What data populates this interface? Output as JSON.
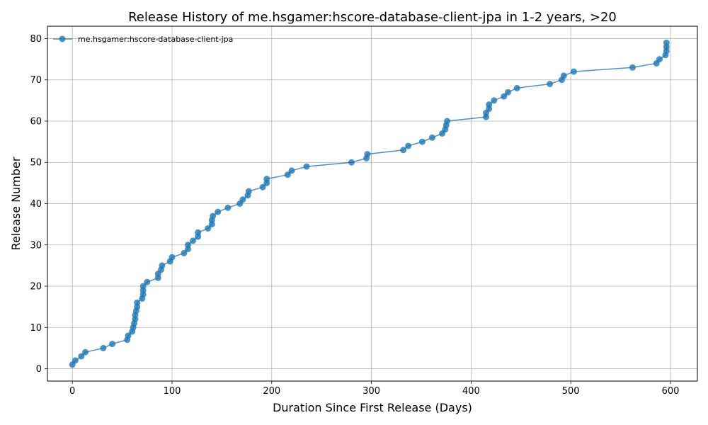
{
  "chart_data": {
    "type": "line",
    "title": "Release History of me.hsgamer:hscore-database-client-jpa in 1-2 years, >20",
    "xlabel": "Duration Since First Release (Days)",
    "ylabel": "Release Number",
    "xlim": [
      -25,
      627
    ],
    "ylim": [
      -3,
      83
    ],
    "xticks": [
      0,
      100,
      200,
      300,
      400,
      500,
      600
    ],
    "yticks": [
      0,
      10,
      20,
      30,
      40,
      50,
      60,
      70,
      80
    ],
    "grid": true,
    "legend": "top-left",
    "color": "#1f77b4",
    "series": [
      {
        "name": "me.hsgamer:hscore-database-client-jpa",
        "points": [
          [
            0,
            1
          ],
          [
            3,
            2
          ],
          [
            9,
            3
          ],
          [
            13,
            4
          ],
          [
            31,
            5
          ],
          [
            40,
            6
          ],
          [
            55,
            7
          ],
          [
            56,
            8
          ],
          [
            60,
            9
          ],
          [
            61,
            10
          ],
          [
            62,
            11
          ],
          [
            63,
            12
          ],
          [
            63,
            13
          ],
          [
            64,
            14
          ],
          [
            65,
            15
          ],
          [
            65,
            16
          ],
          [
            70,
            17
          ],
          [
            71,
            18
          ],
          [
            71,
            19
          ],
          [
            71,
            20
          ],
          [
            75,
            21
          ],
          [
            86,
            22
          ],
          [
            86,
            23
          ],
          [
            89,
            24
          ],
          [
            90,
            25
          ],
          [
            98,
            26
          ],
          [
            100,
            27
          ],
          [
            112,
            28
          ],
          [
            116,
            29
          ],
          [
            116,
            30
          ],
          [
            121,
            31
          ],
          [
            126,
            32
          ],
          [
            126,
            33
          ],
          [
            136,
            34
          ],
          [
            140,
            35
          ],
          [
            140,
            36
          ],
          [
            141,
            37
          ],
          [
            146,
            38
          ],
          [
            156,
            39
          ],
          [
            168,
            40
          ],
          [
            171,
            41
          ],
          [
            176,
            42
          ],
          [
            177,
            43
          ],
          [
            191,
            44
          ],
          [
            195,
            45
          ],
          [
            195,
            46
          ],
          [
            216,
            47
          ],
          [
            220,
            48
          ],
          [
            235,
            49
          ],
          [
            280,
            50
          ],
          [
            295,
            51
          ],
          [
            296,
            52
          ],
          [
            332,
            53
          ],
          [
            337,
            54
          ],
          [
            351,
            55
          ],
          [
            361,
            56
          ],
          [
            371,
            57
          ],
          [
            374,
            58
          ],
          [
            375,
            59
          ],
          [
            376,
            60
          ],
          [
            415,
            61
          ],
          [
            415,
            62
          ],
          [
            418,
            63
          ],
          [
            418,
            64
          ],
          [
            423,
            65
          ],
          [
            433,
            66
          ],
          [
            437,
            67
          ],
          [
            446,
            68
          ],
          [
            479,
            69
          ],
          [
            491,
            70
          ],
          [
            493,
            71
          ],
          [
            503,
            72
          ],
          [
            562,
            73
          ],
          [
            586,
            74
          ],
          [
            589,
            75
          ],
          [
            595,
            76
          ],
          [
            596,
            77
          ],
          [
            596,
            78
          ],
          [
            596,
            79
          ]
        ]
      }
    ]
  }
}
